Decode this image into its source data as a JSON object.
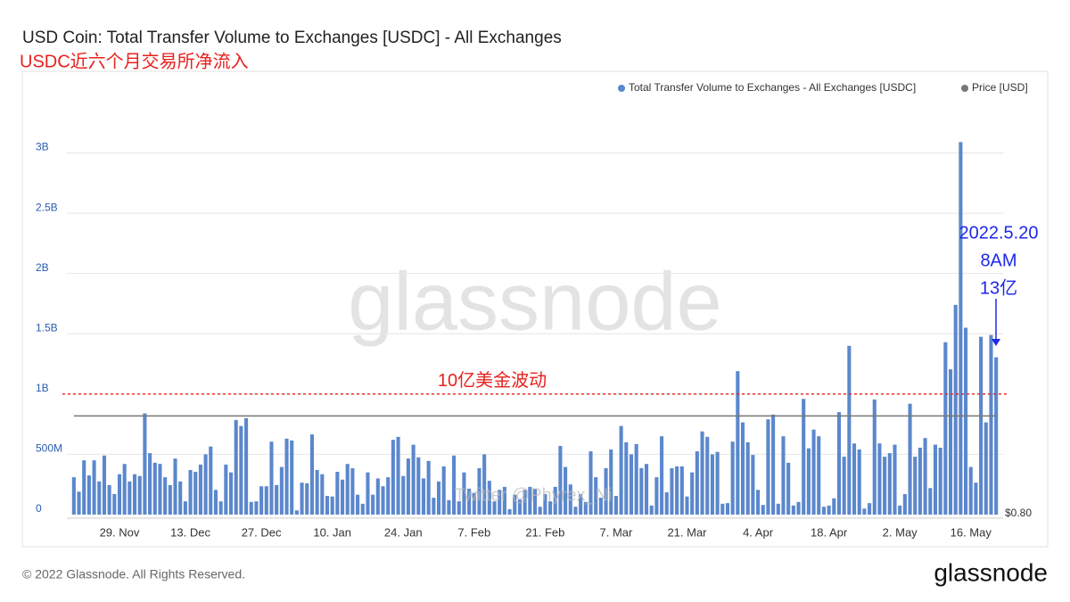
{
  "chart_data": {
    "type": "bar",
    "title": "USD Coin: Total Transfer Volume to Exchanges [USDC] - All Exchanges",
    "subtitle": "USDC近六个月交易所净流入",
    "categories": [
      null,
      null,
      null,
      null,
      null,
      null,
      null,
      null,
      null,
      "29. Nov",
      null,
      null,
      null,
      null,
      null,
      null,
      null,
      null,
      null,
      null,
      null,
      null,
      null,
      "13. Dec",
      null,
      null,
      null,
      null,
      null,
      null,
      null,
      null,
      null,
      null,
      null,
      null,
      null,
      "27. Dec",
      null,
      null,
      null,
      null,
      null,
      null,
      null,
      null,
      null,
      null,
      null,
      null,
      null,
      "10. Jan",
      null,
      null,
      null,
      null,
      null,
      null,
      null,
      null,
      null,
      null,
      null,
      null,
      null,
      "24. Jan",
      null,
      null,
      null,
      null,
      null,
      null,
      null,
      null,
      null,
      null,
      null,
      null,
      null,
      "7. Feb",
      null,
      null,
      null,
      null,
      null,
      null,
      null,
      null,
      null,
      null,
      null,
      null,
      null,
      "21. Feb",
      null,
      null,
      null,
      null,
      null,
      null,
      null,
      null,
      null,
      null,
      null,
      null,
      null,
      "7. Mar",
      null,
      null,
      null,
      null,
      null,
      null,
      null,
      null,
      null,
      null,
      null,
      null,
      null,
      "21. Mar",
      null,
      null,
      null,
      null,
      null,
      null,
      null,
      null,
      null,
      null,
      null,
      null,
      null,
      "4. Apr",
      null,
      null,
      null,
      null,
      null,
      null,
      null,
      null,
      null,
      null,
      null,
      null,
      null,
      "18. Apr",
      null,
      null,
      null,
      null,
      null,
      null,
      null,
      null,
      null,
      null,
      null,
      null,
      null,
      "2. May",
      null,
      null,
      null,
      null,
      null,
      null,
      null,
      null,
      null,
      null,
      null,
      null,
      null,
      "16. May",
      null,
      null,
      null,
      null,
      null
    ],
    "series": [
      {
        "name": "Total Transfer Volume to Exchanges - All Exchanges [USDC]",
        "color": "#5b87cc",
        "values": [
          310000000,
          190000000,
          450000000,
          325000000,
          450000000,
          275000000,
          490000000,
          245000000,
          170000000,
          335000000,
          420000000,
          275000000,
          335000000,
          320000000,
          840000000,
          510000000,
          430000000,
          420000000,
          310000000,
          245000000,
          465000000,
          275000000,
          110000000,
          370000000,
          355000000,
          415000000,
          500000000,
          565000000,
          205000000,
          110000000,
          415000000,
          350000000,
          785000000,
          735000000,
          800000000,
          105000000,
          110000000,
          235000000,
          235000000,
          605000000,
          245000000,
          395000000,
          630000000,
          615000000,
          35000000,
          265000000,
          260000000,
          665000000,
          370000000,
          335000000,
          155000000,
          150000000,
          355000000,
          290000000,
          420000000,
          385000000,
          165000000,
          90000000,
          350000000,
          165000000,
          300000000,
          235000000,
          310000000,
          620000000,
          645000000,
          320000000,
          465000000,
          580000000,
          475000000,
          300000000,
          445000000,
          140000000,
          275000000,
          400000000,
          120000000,
          490000000,
          110000000,
          350000000,
          215000000,
          180000000,
          385000000,
          500000000,
          280000000,
          110000000,
          205000000,
          230000000,
          45000000,
          165000000,
          125000000,
          205000000,
          230000000,
          215000000,
          65000000,
          170000000,
          110000000,
          230000000,
          570000000,
          395000000,
          250000000,
          65000000,
          170000000,
          105000000,
          525000000,
          310000000,
          140000000,
          385000000,
          540000000,
          155000000,
          735000000,
          600000000,
          500000000,
          585000000,
          385000000,
          420000000,
          75000000,
          310000000,
          650000000,
          185000000,
          385000000,
          400000000,
          400000000,
          150000000,
          350000000,
          525000000,
          690000000,
          645000000,
          500000000,
          520000000,
          90000000,
          95000000,
          605000000,
          1190000000,
          765000000,
          600000000,
          495000000,
          205000000,
          80000000,
          790000000,
          830000000,
          90000000,
          650000000,
          430000000,
          75000000,
          105000000,
          960000000,
          550000000,
          705000000,
          650000000,
          65000000,
          75000000,
          135000000,
          850000000,
          480000000,
          1400000000,
          590000000,
          540000000,
          50000000,
          95000000,
          955000000,
          590000000,
          480000000,
          510000000,
          580000000,
          75000000,
          170000000,
          920000000,
          480000000,
          555000000,
          635000000,
          220000000,
          580000000,
          555000000,
          1430000000,
          1205000000,
          1740000000,
          3090000000,
          1550000000,
          395000000,
          265000000,
          1475000000,
          765000000,
          1490000000,
          1305000000
        ]
      },
      {
        "name": "Price [USD]",
        "color": "#777777",
        "axis": "y2",
        "values": [
          1,
          1,
          1,
          1,
          1,
          1,
          1,
          1,
          1,
          1,
          1,
          1,
          1,
          1,
          1,
          1,
          1,
          1,
          1,
          1,
          1,
          1,
          1,
          1,
          1,
          1,
          1,
          1,
          1,
          1,
          1,
          1,
          1,
          1,
          1,
          1,
          1,
          1,
          1,
          1,
          1,
          1,
          1,
          1,
          1,
          1,
          1,
          1,
          1,
          1,
          1,
          1,
          1,
          1,
          1,
          1,
          1,
          1,
          1,
          1,
          1,
          1,
          1,
          1,
          1,
          1,
          1,
          1,
          1,
          1,
          1,
          1,
          1,
          1,
          1,
          1,
          1,
          1,
          1,
          1,
          1,
          1,
          1,
          1,
          1,
          1,
          1,
          1,
          1,
          1,
          1,
          1,
          1,
          1,
          1,
          1,
          1,
          1,
          1,
          1,
          1,
          1,
          1,
          1,
          1,
          1,
          1,
          1,
          1,
          1,
          1,
          1,
          1,
          1,
          1,
          1,
          1,
          1,
          1,
          1,
          1,
          1,
          1,
          1,
          1,
          1,
          1,
          1,
          1,
          1,
          1,
          1,
          1,
          1,
          1,
          1,
          1,
          1,
          1,
          1,
          1,
          1,
          1,
          1,
          1,
          1,
          1,
          1,
          1,
          1,
          1,
          1,
          1,
          1,
          1,
          1,
          1,
          1,
          1,
          1,
          1,
          1,
          1,
          1,
          1,
          1,
          1,
          1,
          1,
          1,
          1,
          1,
          1,
          1,
          1,
          1,
          1,
          1,
          1,
          1,
          1,
          1,
          1
        ]
      }
    ],
    "ylim": [
      0,
      3640000000
    ],
    "yticks": [
      0,
      {
        "value": 500000000,
        "label": "500M"
      },
      {
        "value": 1000000000,
        "label": "1B"
      },
      {
        "value": 1500000000,
        "label": "1.5B"
      },
      {
        "value": 2000000000,
        "label": "2B"
      },
      {
        "value": 2500000000,
        "label": "2.5B"
      },
      {
        "value": 3000000000,
        "label": "3B"
      }
    ],
    "y2lim": [
      0.8,
      1.69
    ],
    "y2ticks": [
      {
        "value": 0.8,
        "label": "$0.80"
      }
    ],
    "grid": true,
    "legend": "top-right",
    "reference_line": {
      "value": 1000000000,
      "label": "10亿美金波动",
      "color": "#e8211d"
    },
    "annotation": {
      "lines": [
        "2022.5.20",
        "8AM",
        "13亿"
      ],
      "color": "#1d28e8"
    },
    "watermark": "glassnode",
    "watermark_small": "Twitter @Phyrex_Ni",
    "footer": "© 2022 Glassnode. All Rights Reserved.",
    "logo": "glassnode"
  }
}
